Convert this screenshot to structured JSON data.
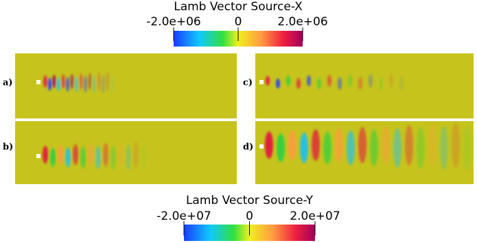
{
  "colorbars": [
    {
      "title": "Lamb Vector Source-X",
      "lim": [
        -2000000,
        2000000
      ],
      "ticks": [
        {
          "value": -2000000,
          "label": "-2.0e+06"
        },
        0,
        {
          "value": 2000000,
          "label": "2.0e+06"
        }
      ]
    },
    {
      "title": "Lamb Vector Source-Y",
      "lim": [
        -20000000,
        20000000
      ],
      "ticks": [
        {
          "value": -20000000,
          "label": "-2.0e+07"
        },
        0,
        {
          "value": 20000000,
          "label": "2.0e+07"
        }
      ]
    }
  ],
  "panels": [
    "a)",
    "b)",
    "c)",
    "d)"
  ]
}
